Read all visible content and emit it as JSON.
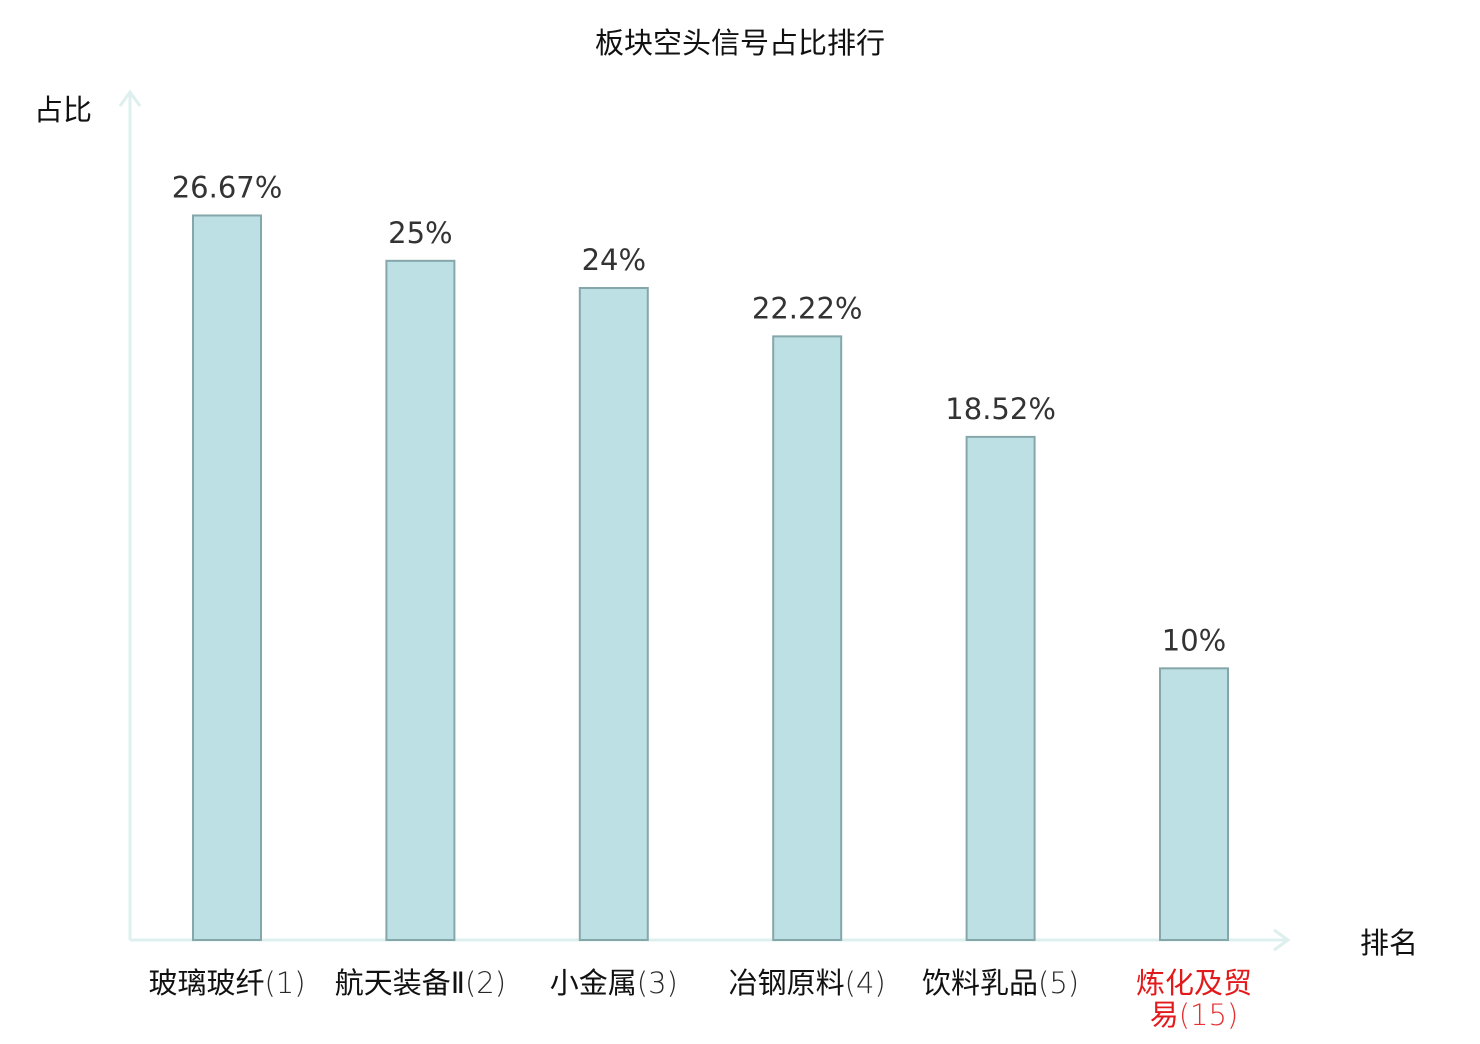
{
  "chart_data": {
    "type": "bar",
    "title": "板块空头信号占比排行",
    "ylabel": "占比",
    "xlabel": "排名",
    "ylim": [
      0,
      30
    ],
    "grid": false,
    "colors": {
      "bar_fill": "#bce0e3",
      "bar_stroke": "#86a7aa",
      "axis": "#ddf0ef",
      "text": "#333333",
      "highlight": "#e31a1c"
    },
    "categories": [
      {
        "name": "玻璃玻纤",
        "rank": "(1)",
        "highlight": false
      },
      {
        "name": "航天装备Ⅱ",
        "rank": "(2)",
        "highlight": false
      },
      {
        "name": "小金属",
        "rank": "(3)",
        "highlight": false
      },
      {
        "name": "冶钢原料",
        "rank": "(4)",
        "highlight": false
      },
      {
        "name": "饮料乳品",
        "rank": "(5)",
        "highlight": false
      },
      {
        "name": "炼化及贸易",
        "rank": "(15)",
        "highlight": true
      }
    ],
    "values": [
      26.67,
      25,
      24,
      22.22,
      18.52,
      10
    ],
    "value_labels": [
      "26.67%",
      "25%",
      "24%",
      "22.22%",
      "18.52%",
      "10%"
    ]
  }
}
